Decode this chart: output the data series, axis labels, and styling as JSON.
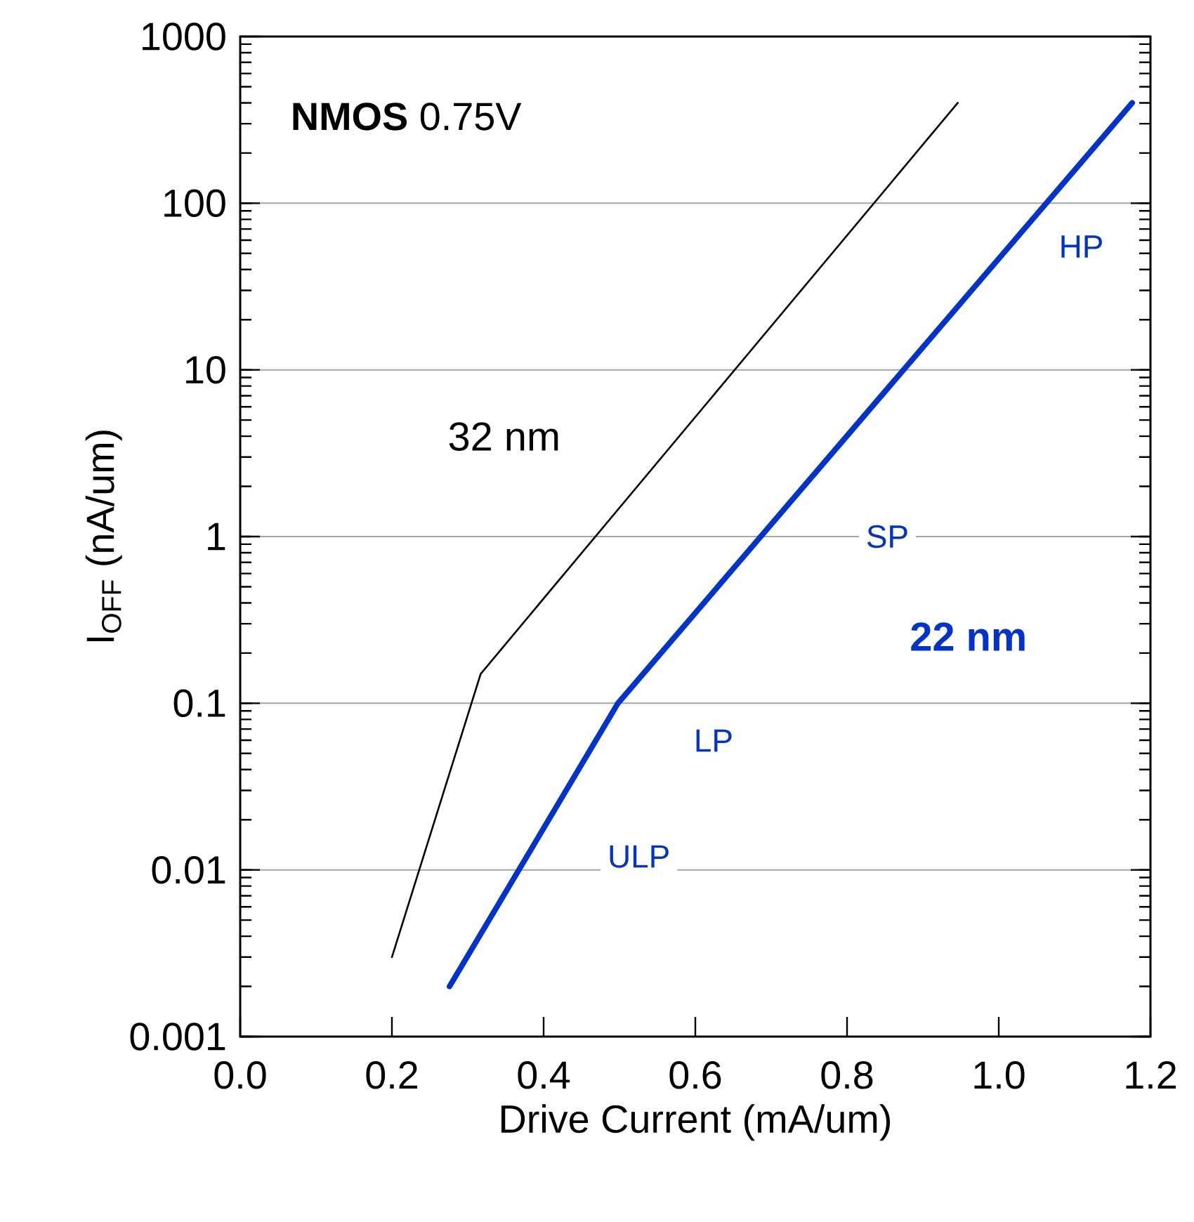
{
  "chart_data": {
    "type": "line",
    "log": "y",
    "grid": "y",
    "xlabel": "Drive Current (mA/um)",
    "ylabel": "I$_{OFF}$ (nA/um)",
    "xlim": [
      0,
      1.2
    ],
    "ylim": [
      0.001,
      1000
    ],
    "xticks": [
      {
        "value": 0,
        "label": "0.0"
      },
      0.2,
      0.4,
      0.6,
      0.8,
      {
        "value": 1.0,
        "label": "1.0"
      },
      1.2
    ],
    "yticks": [
      0.001,
      0.01,
      0.1,
      1,
      10,
      100,
      1000
    ],
    "series": [
      {
        "name": "32 nm",
        "color": "#000000",
        "x": [
          0.2,
          0.317,
          0.946
        ],
        "values": [
          0.003,
          0.15,
          400
        ]
      },
      {
        "name": "22 nm",
        "color": "#0033cc",
        "x": [
          0.276,
          0.498,
          1.176
        ],
        "values": [
          0.002,
          0.1,
          400
        ]
      }
    ],
    "annotations": [
      "**NMOS**  0.75V",
      "HP",
      "SP",
      "LP",
      "ULP"
    ]
  }
}
